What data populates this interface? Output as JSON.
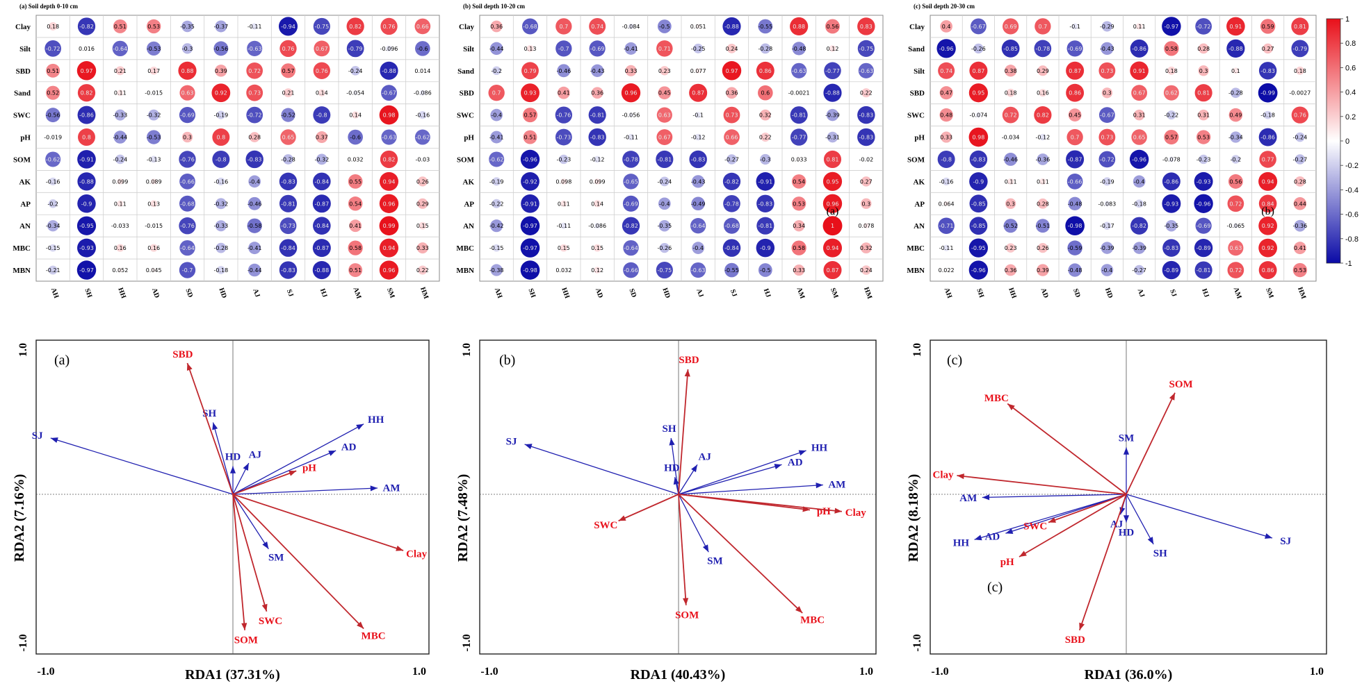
{
  "colors": {
    "positive": "#e8101a",
    "negative": "#0a0aa6",
    "rda_env": "#c0272d",
    "rda_env_label": "#e8101a",
    "rda_species": "#1f1fb0",
    "grid": "#cfcfcf"
  },
  "colorbar": {
    "ticks": [
      "1",
      "0.8",
      "0.6",
      "0.4",
      "0.2",
      "0",
      "-0.2",
      "-0.4",
      "-0.6",
      "-0.8",
      "-1"
    ]
  },
  "chart_data": [
    {
      "type": "heatmap",
      "title": "(a) Soil depth 0-10 cm",
      "columns": [
        "AH",
        "SH",
        "HH",
        "AD",
        "SD",
        "HD",
        "AJ",
        "SJ",
        "HJ",
        "AM",
        "SM",
        "HM"
      ],
      "rows": [
        "Clay",
        "Silt",
        "SBD",
        "Sand",
        "SWC",
        "pH",
        "SOM",
        "AK",
        "AP",
        "AN",
        "MBC",
        "MBN"
      ],
      "values": [
        [
          0.18,
          -0.82,
          0.51,
          0.53,
          -0.35,
          -0.37,
          -0.11,
          -0.94,
          -0.75,
          0.82,
          0.76,
          0.66
        ],
        [
          -0.72,
          0.016,
          -0.64,
          -0.53,
          -0.3,
          -0.56,
          -0.63,
          0.76,
          0.67,
          -0.79,
          -0.096,
          -0.6
        ],
        [
          0.51,
          0.97,
          0.21,
          0.17,
          0.88,
          0.39,
          0.72,
          0.57,
          0.76,
          -0.24,
          -0.88,
          0.014
        ],
        [
          0.52,
          0.82,
          0.11,
          -0.015,
          0.63,
          0.92,
          0.73,
          0.21,
          0.14,
          -0.054,
          -0.67,
          -0.086
        ],
        [
          -0.56,
          -0.86,
          -0.33,
          -0.32,
          -0.69,
          -0.19,
          -0.72,
          -0.52,
          -0.8,
          0.14,
          0.98,
          -0.16
        ],
        [
          -0.019,
          0.8,
          -0.44,
          -0.53,
          0.3,
          0.8,
          0.28,
          0.65,
          0.37,
          -0.6,
          -0.63,
          -0.62
        ],
        [
          -0.62,
          -0.91,
          -0.24,
          -0.13,
          -0.76,
          -0.8,
          -0.83,
          -0.28,
          -0.32,
          0.032,
          0.82,
          -0.03
        ],
        [
          -0.16,
          -0.88,
          0.099,
          0.089,
          -0.66,
          -0.16,
          -0.4,
          -0.83,
          -0.84,
          0.55,
          0.94,
          0.26
        ],
        [
          -0.2,
          -0.9,
          0.11,
          0.13,
          -0.68,
          -0.32,
          -0.46,
          -0.81,
          -0.87,
          0.54,
          0.96,
          0.29
        ],
        [
          -0.34,
          -0.95,
          -0.033,
          -0.015,
          -0.76,
          -0.33,
          -0.58,
          -0.73,
          -0.84,
          0.41,
          0.99,
          0.15
        ],
        [
          -0.15,
          -0.93,
          0.16,
          0.16,
          -0.64,
          -0.28,
          -0.41,
          -0.84,
          -0.87,
          0.58,
          0.94,
          0.33
        ],
        [
          -0.21,
          -0.97,
          0.052,
          0.045,
          -0.7,
          -0.18,
          -0.44,
          -0.83,
          -0.88,
          0.51,
          0.96,
          0.22
        ]
      ]
    },
    {
      "type": "heatmap",
      "title": "(b) Soil depth 10-20 cm",
      "columns": [
        "AH",
        "SH",
        "HH",
        "AD",
        "SD",
        "HD",
        "AJ",
        "SJ",
        "HJ",
        "AM",
        "SM",
        "HM"
      ],
      "rows": [
        "Clay",
        "Silt",
        "Sand",
        "SBD",
        "SWC",
        "pH",
        "SOM",
        "AK",
        "AP",
        "AN",
        "MBC",
        "MBN"
      ],
      "overlay_label": "(a)",
      "values": [
        [
          0.36,
          -0.68,
          0.7,
          0.74,
          -0.084,
          -0.5,
          0.051,
          -0.88,
          -0.55,
          0.88,
          0.56,
          0.83
        ],
        [
          -0.44,
          0.13,
          -0.7,
          -0.69,
          -0.41,
          0.71,
          -0.25,
          0.24,
          -0.28,
          -0.48,
          0.12,
          -0.75
        ],
        [
          -0.2,
          0.79,
          -0.46,
          -0.43,
          0.33,
          0.23,
          0.077,
          0.97,
          0.86,
          -0.63,
          -0.77,
          -0.63
        ],
        [
          0.7,
          0.93,
          0.41,
          0.36,
          0.96,
          0.45,
          0.87,
          0.36,
          0.6,
          -0.0021,
          -0.88,
          0.22
        ],
        [
          -0.4,
          0.57,
          -0.76,
          -0.81,
          -0.056,
          0.63,
          -0.1,
          0.73,
          0.32,
          -0.81,
          -0.39,
          -0.83
        ],
        [
          -0.41,
          0.51,
          -0.73,
          -0.83,
          -0.11,
          0.67,
          -0.12,
          0.66,
          0.22,
          -0.77,
          -0.31,
          -0.83
        ],
        [
          -0.62,
          -0.96,
          -0.23,
          -0.12,
          -0.78,
          -0.81,
          -0.83,
          -0.27,
          -0.3,
          0.033,
          0.81,
          -0.02
        ],
        [
          -0.19,
          -0.92,
          0.098,
          0.099,
          -0.65,
          -0.24,
          -0.43,
          -0.82,
          -0.91,
          0.54,
          0.95,
          0.27
        ],
        [
          -0.22,
          -0.91,
          0.11,
          0.14,
          -0.69,
          -0.4,
          -0.49,
          -0.78,
          -0.83,
          0.53,
          0.96,
          0.3
        ],
        [
          -0.42,
          -0.97,
          -0.11,
          -0.086,
          -0.82,
          -0.35,
          -0.64,
          -0.68,
          -0.81,
          0.34,
          1.0,
          0.078
        ],
        [
          -0.15,
          -0.97,
          0.15,
          0.15,
          -0.64,
          -0.26,
          -0.4,
          -0.84,
          -0.9,
          0.58,
          0.94,
          0.32
        ],
        [
          -0.38,
          -0.98,
          0.032,
          0.12,
          -0.66,
          -0.75,
          -0.63,
          -0.55,
          -0.5,
          0.33,
          0.87,
          0.24
        ]
      ]
    },
    {
      "type": "heatmap",
      "title": "(c) Soil depth 20-30 cm",
      "columns": [
        "AH",
        "SH",
        "HH",
        "AD",
        "SD",
        "HD",
        "AJ",
        "SJ",
        "HJ",
        "AM",
        "SM",
        "HM"
      ],
      "rows": [
        "Clay",
        "Sand",
        "Silt",
        "SBD",
        "SWC",
        "pH",
        "SOM",
        "AK",
        "AP",
        "AN",
        "MBC",
        "MBN"
      ],
      "overlay_label": "(b)",
      "values": [
        [
          0.4,
          -0.67,
          0.69,
          0.7,
          -0.1,
          -0.29,
          0.11,
          -0.97,
          -0.72,
          0.91,
          0.59,
          0.81
        ],
        [
          -0.96,
          -0.26,
          -0.85,
          -0.78,
          -0.69,
          -0.43,
          -0.86,
          0.58,
          0.28,
          -0.88,
          0.27,
          -0.79
        ],
        [
          0.74,
          0.87,
          0.38,
          0.29,
          0.87,
          0.73,
          0.91,
          0.18,
          0.3,
          0.1,
          -0.83,
          0.18
        ],
        [
          0.47,
          0.95,
          0.18,
          0.16,
          0.86,
          0.3,
          0.67,
          0.62,
          0.81,
          -0.28,
          -0.99,
          -0.0027
        ],
        [
          0.48,
          -0.074,
          0.72,
          0.82,
          0.45,
          -0.67,
          0.31,
          -0.22,
          0.31,
          0.49,
          -0.18,
          0.76
        ],
        [
          0.33,
          0.98,
          -0.034,
          -0.12,
          0.7,
          0.73,
          0.65,
          0.57,
          0.53,
          -0.34,
          -0.86,
          -0.24
        ],
        [
          -0.8,
          -0.83,
          -0.46,
          -0.36,
          -0.87,
          -0.72,
          -0.96,
          -0.078,
          -0.23,
          -0.2,
          0.77,
          -0.27
        ],
        [
          -0.16,
          -0.9,
          0.11,
          0.11,
          -0.66,
          -0.19,
          -0.4,
          -0.86,
          -0.93,
          0.56,
          0.94,
          0.28
        ],
        [
          0.064,
          -0.85,
          0.3,
          0.28,
          -0.48,
          -0.083,
          -0.18,
          -0.93,
          -0.96,
          0.72,
          0.84,
          0.44
        ],
        [
          -0.71,
          -0.85,
          -0.52,
          -0.51,
          -0.98,
          -0.17,
          -0.82,
          -0.35,
          -0.69,
          -0.065,
          0.92,
          -0.36
        ],
        [
          -0.11,
          -0.95,
          0.23,
          0.26,
          -0.59,
          -0.39,
          -0.39,
          -0.83,
          -0.89,
          0.63,
          0.92,
          0.41
        ],
        [
          0.022,
          -0.96,
          0.36,
          0.39,
          -0.48,
          -0.4,
          -0.27,
          -0.89,
          -0.81,
          0.72,
          0.86,
          0.53
        ]
      ]
    },
    {
      "type": "scatter",
      "subtype": "rda-biplot",
      "panel_label": "(a)",
      "xlabel": "RDA1 (37.31%)",
      "ylabel": "RDA2 (7.16%)",
      "xlim": [
        -1.0,
        1.0
      ],
      "ylim": [
        -1.0,
        1.0
      ],
      "x_tick_labels": [
        "-1.0",
        "1.0"
      ],
      "y_tick_labels": [
        "1.0",
        "-1.0"
      ],
      "env_vectors": [
        {
          "label": "SBD",
          "x": -0.23,
          "y": 0.84
        },
        {
          "label": "pH",
          "x": 0.32,
          "y": 0.15
        },
        {
          "label": "Clay",
          "x": 0.86,
          "y": -0.36
        },
        {
          "label": "SWC",
          "x": 0.17,
          "y": -0.75
        },
        {
          "label": "SOM",
          "x": 0.06,
          "y": -0.87
        },
        {
          "label": "MBC",
          "x": 0.66,
          "y": -0.86
        }
      ],
      "species_vectors": [
        {
          "label": "SJ",
          "x": -0.92,
          "y": 0.36
        },
        {
          "label": "SH",
          "x": -0.1,
          "y": 0.46
        },
        {
          "label": "HD",
          "x": 0.0,
          "y": 0.18
        },
        {
          "label": "AJ",
          "x": 0.08,
          "y": 0.2
        },
        {
          "label": "HH",
          "x": 0.66,
          "y": 0.45
        },
        {
          "label": "AD",
          "x": 0.52,
          "y": 0.28
        },
        {
          "label": "AM",
          "x": 0.73,
          "y": 0.04
        },
        {
          "label": "SM",
          "x": 0.18,
          "y": -0.35
        }
      ]
    },
    {
      "type": "scatter",
      "subtype": "rda-biplot",
      "panel_label": "(b)",
      "xlabel": "RDA1 (40.43%)",
      "ylabel": "RDA2 (7.48%)",
      "xlim": [
        -1.0,
        1.0
      ],
      "ylim": [
        -1.0,
        1.0
      ],
      "x_tick_labels": [
        "-1.0",
        "1.0"
      ],
      "y_tick_labels": [
        "1.0",
        "-1.0"
      ],
      "env_vectors": [
        {
          "label": "SBD",
          "x": 0.05,
          "y": 0.8
        },
        {
          "label": "pH",
          "x": 0.7,
          "y": -0.1
        },
        {
          "label": "Clay",
          "x": 0.87,
          "y": -0.11
        },
        {
          "label": "SWC",
          "x": -0.32,
          "y": -0.17
        },
        {
          "label": "SOM",
          "x": 0.04,
          "y": -0.71
        },
        {
          "label": "MBC",
          "x": 0.66,
          "y": -0.76
        }
      ],
      "species_vectors": [
        {
          "label": "SJ",
          "x": -0.82,
          "y": 0.32
        },
        {
          "label": "SH",
          "x": -0.04,
          "y": 0.36
        },
        {
          "label": "HD",
          "x": -0.02,
          "y": 0.11
        },
        {
          "label": "AJ",
          "x": 0.1,
          "y": 0.19
        },
        {
          "label": "HH",
          "x": 0.68,
          "y": 0.28
        },
        {
          "label": "AD",
          "x": 0.55,
          "y": 0.19
        },
        {
          "label": "AM",
          "x": 0.77,
          "y": 0.06
        },
        {
          "label": "SM",
          "x": 0.16,
          "y": -0.37
        }
      ]
    },
    {
      "type": "scatter",
      "subtype": "rda-biplot",
      "panel_label": "(c)",
      "secondary_label": "(c)",
      "xlabel": "RDA1 (36.0%)",
      "ylabel": "RDA2 (8.18%)",
      "xlim": [
        -1.0,
        1.0
      ],
      "ylim": [
        -1.0,
        1.0
      ],
      "x_tick_labels": [
        "-1.0",
        "1.0"
      ],
      "y_tick_labels": [
        "1.0",
        "-1.0"
      ],
      "env_vectors": [
        {
          "label": "MBC",
          "x": -0.61,
          "y": 0.58
        },
        {
          "label": "SOM",
          "x": 0.25,
          "y": 0.65
        },
        {
          "label": "Clay",
          "x": -0.87,
          "y": 0.12
        },
        {
          "label": "SWC",
          "x": -0.4,
          "y": -0.18
        },
        {
          "label": "pH",
          "x": -0.55,
          "y": -0.4
        },
        {
          "label": "SBD",
          "x": -0.24,
          "y": -0.87
        }
      ],
      "species_vectors": [
        {
          "label": "SM",
          "x": 0.0,
          "y": 0.3
        },
        {
          "label": "AM",
          "x": -0.74,
          "y": -0.02
        },
        {
          "label": "AD",
          "x": -0.62,
          "y": -0.25
        },
        {
          "label": "HH",
          "x": -0.78,
          "y": -0.29
        },
        {
          "label": "AJ",
          "x": -0.03,
          "y": -0.13
        },
        {
          "label": "HD",
          "x": 0.0,
          "y": -0.18
        },
        {
          "label": "SH",
          "x": 0.14,
          "y": -0.32
        },
        {
          "label": "SJ",
          "x": 0.75,
          "y": -0.28
        }
      ]
    }
  ]
}
